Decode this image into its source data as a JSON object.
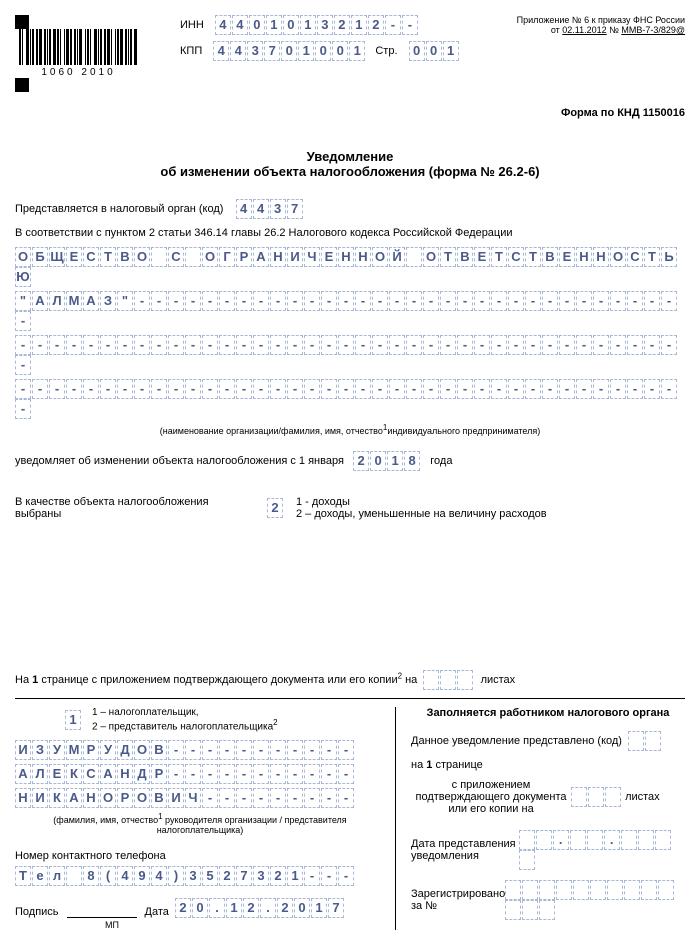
{
  "barcode_text": "1060 2010",
  "header": {
    "inn_label": "ИНН",
    "inn": "4401013212--",
    "kpp_label": "КПП",
    "kpp": "443701001",
    "page_label": "Стр.",
    "page": "001",
    "appendix_line1": "Приложение № 6 к приказу ФНС России",
    "appendix_date": "02.11.2012",
    "appendix_no": "ММВ-7-3/829@"
  },
  "form_code": "Форма по КНД 1150016",
  "title1": "Уведомление",
  "title2": "об изменении объекта налогообложения (форма № 26.2-6)",
  "submit_label": "Представляется в налоговый орган (код)",
  "submit_code": "4437",
  "law_ref": "В соответствии с пунктом 2 статьи 346.14 главы 26.2 Налогового кодекса Российской Федерации",
  "org_name_lines": [
    "ОБЩЕСТВО С ОГРАНИЧЕННОЙ ОТВЕТСТВЕННОСТЬЮ",
    "\"АЛМАЗ\"---------------------------------",
    "----------------------------------------",
    "----------------------------------------"
  ],
  "org_name_note": "(наименование организации/фамилия, имя, отчество",
  "org_name_note2": "индивидуального предпринимателя)",
  "notify_label": "уведомляет об изменении объекта налогообложения с 1 января",
  "year": "2018",
  "year_suffix": "года",
  "object_label": "В качестве объекта налогообложения выбраны",
  "object_code": "2",
  "object_opt1": "1 - доходы",
  "object_opt2": "2 – доходы, уменьшенные на  величину расходов",
  "attach_prefix": "На",
  "attach_page": "1",
  "attach_middle": "странице с приложением подтверждающего документа  или его копии",
  "attach_on": "на",
  "attach_suffix": "листах",
  "signer_code": "1",
  "signer_opt1": "1 – налогоплательщик,",
  "signer_opt2": "2 – представитель налогоплательщика",
  "fio_lines": [
    "ИЗУМРУДОВ-----------",
    "АЛЕКСАНДР-----------",
    "НИКАНОРОВИЧ---------"
  ],
  "fio_note1": "(фамилия, имя, отчество",
  "fio_note2": " руководителя организации / представителя налогоплательщика)",
  "phone_label": "Номер контактного телефона",
  "phone": "Тел 8(494)3527321---",
  "sign_label": "Подпись",
  "date_label": "Дата",
  "sign_date": "20.12.2017",
  "mp": "МП",
  "right": {
    "title": "Заполняется работником налогового органа",
    "presented_label": "Данное уведомление представлено (код)",
    "on_label": "на",
    "on_page": "1",
    "on_suffix": "странице",
    "attach_label1": "с приложением подтверждающего документа или его копии на",
    "attach_suffix": "листах",
    "date_present_label": "Дата представления уведомления",
    "reg_label": "Зарегистрировано за №"
  }
}
